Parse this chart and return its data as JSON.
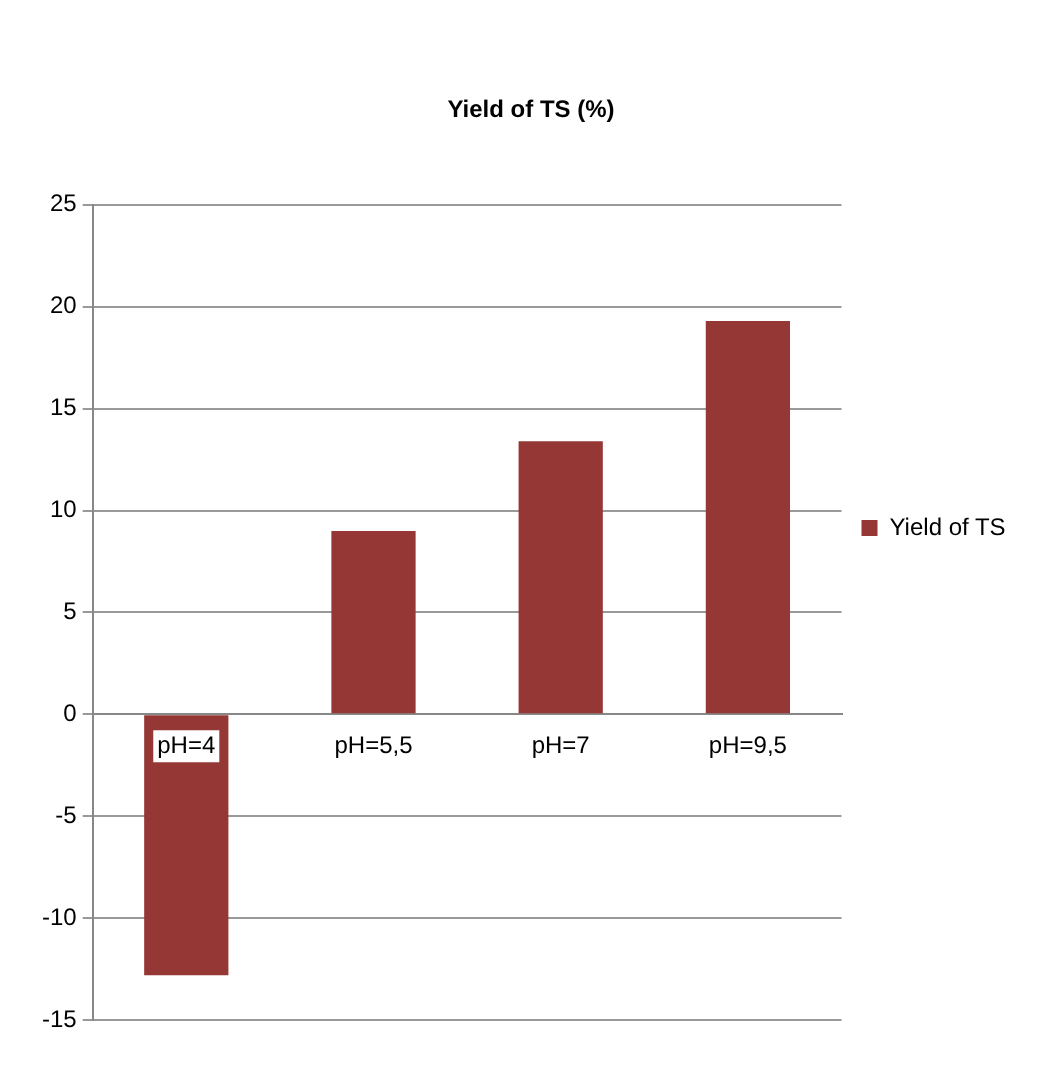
{
  "chart_data": {
    "type": "bar",
    "title": "Yield of TS (%)",
    "categories": [
      "pH=4",
      "pH=5,5",
      "pH=7",
      "pH=9,5"
    ],
    "series": [
      {
        "name": "Yield of TS",
        "color": "#953735",
        "values": [
          -12.8,
          9,
          13.4,
          19.3
        ]
      }
    ],
    "ylim": [
      -15,
      25
    ],
    "yticks": [
      -15,
      -10,
      -5,
      0,
      5,
      10,
      15,
      20,
      25
    ],
    "grid": "y",
    "legend": "right"
  }
}
